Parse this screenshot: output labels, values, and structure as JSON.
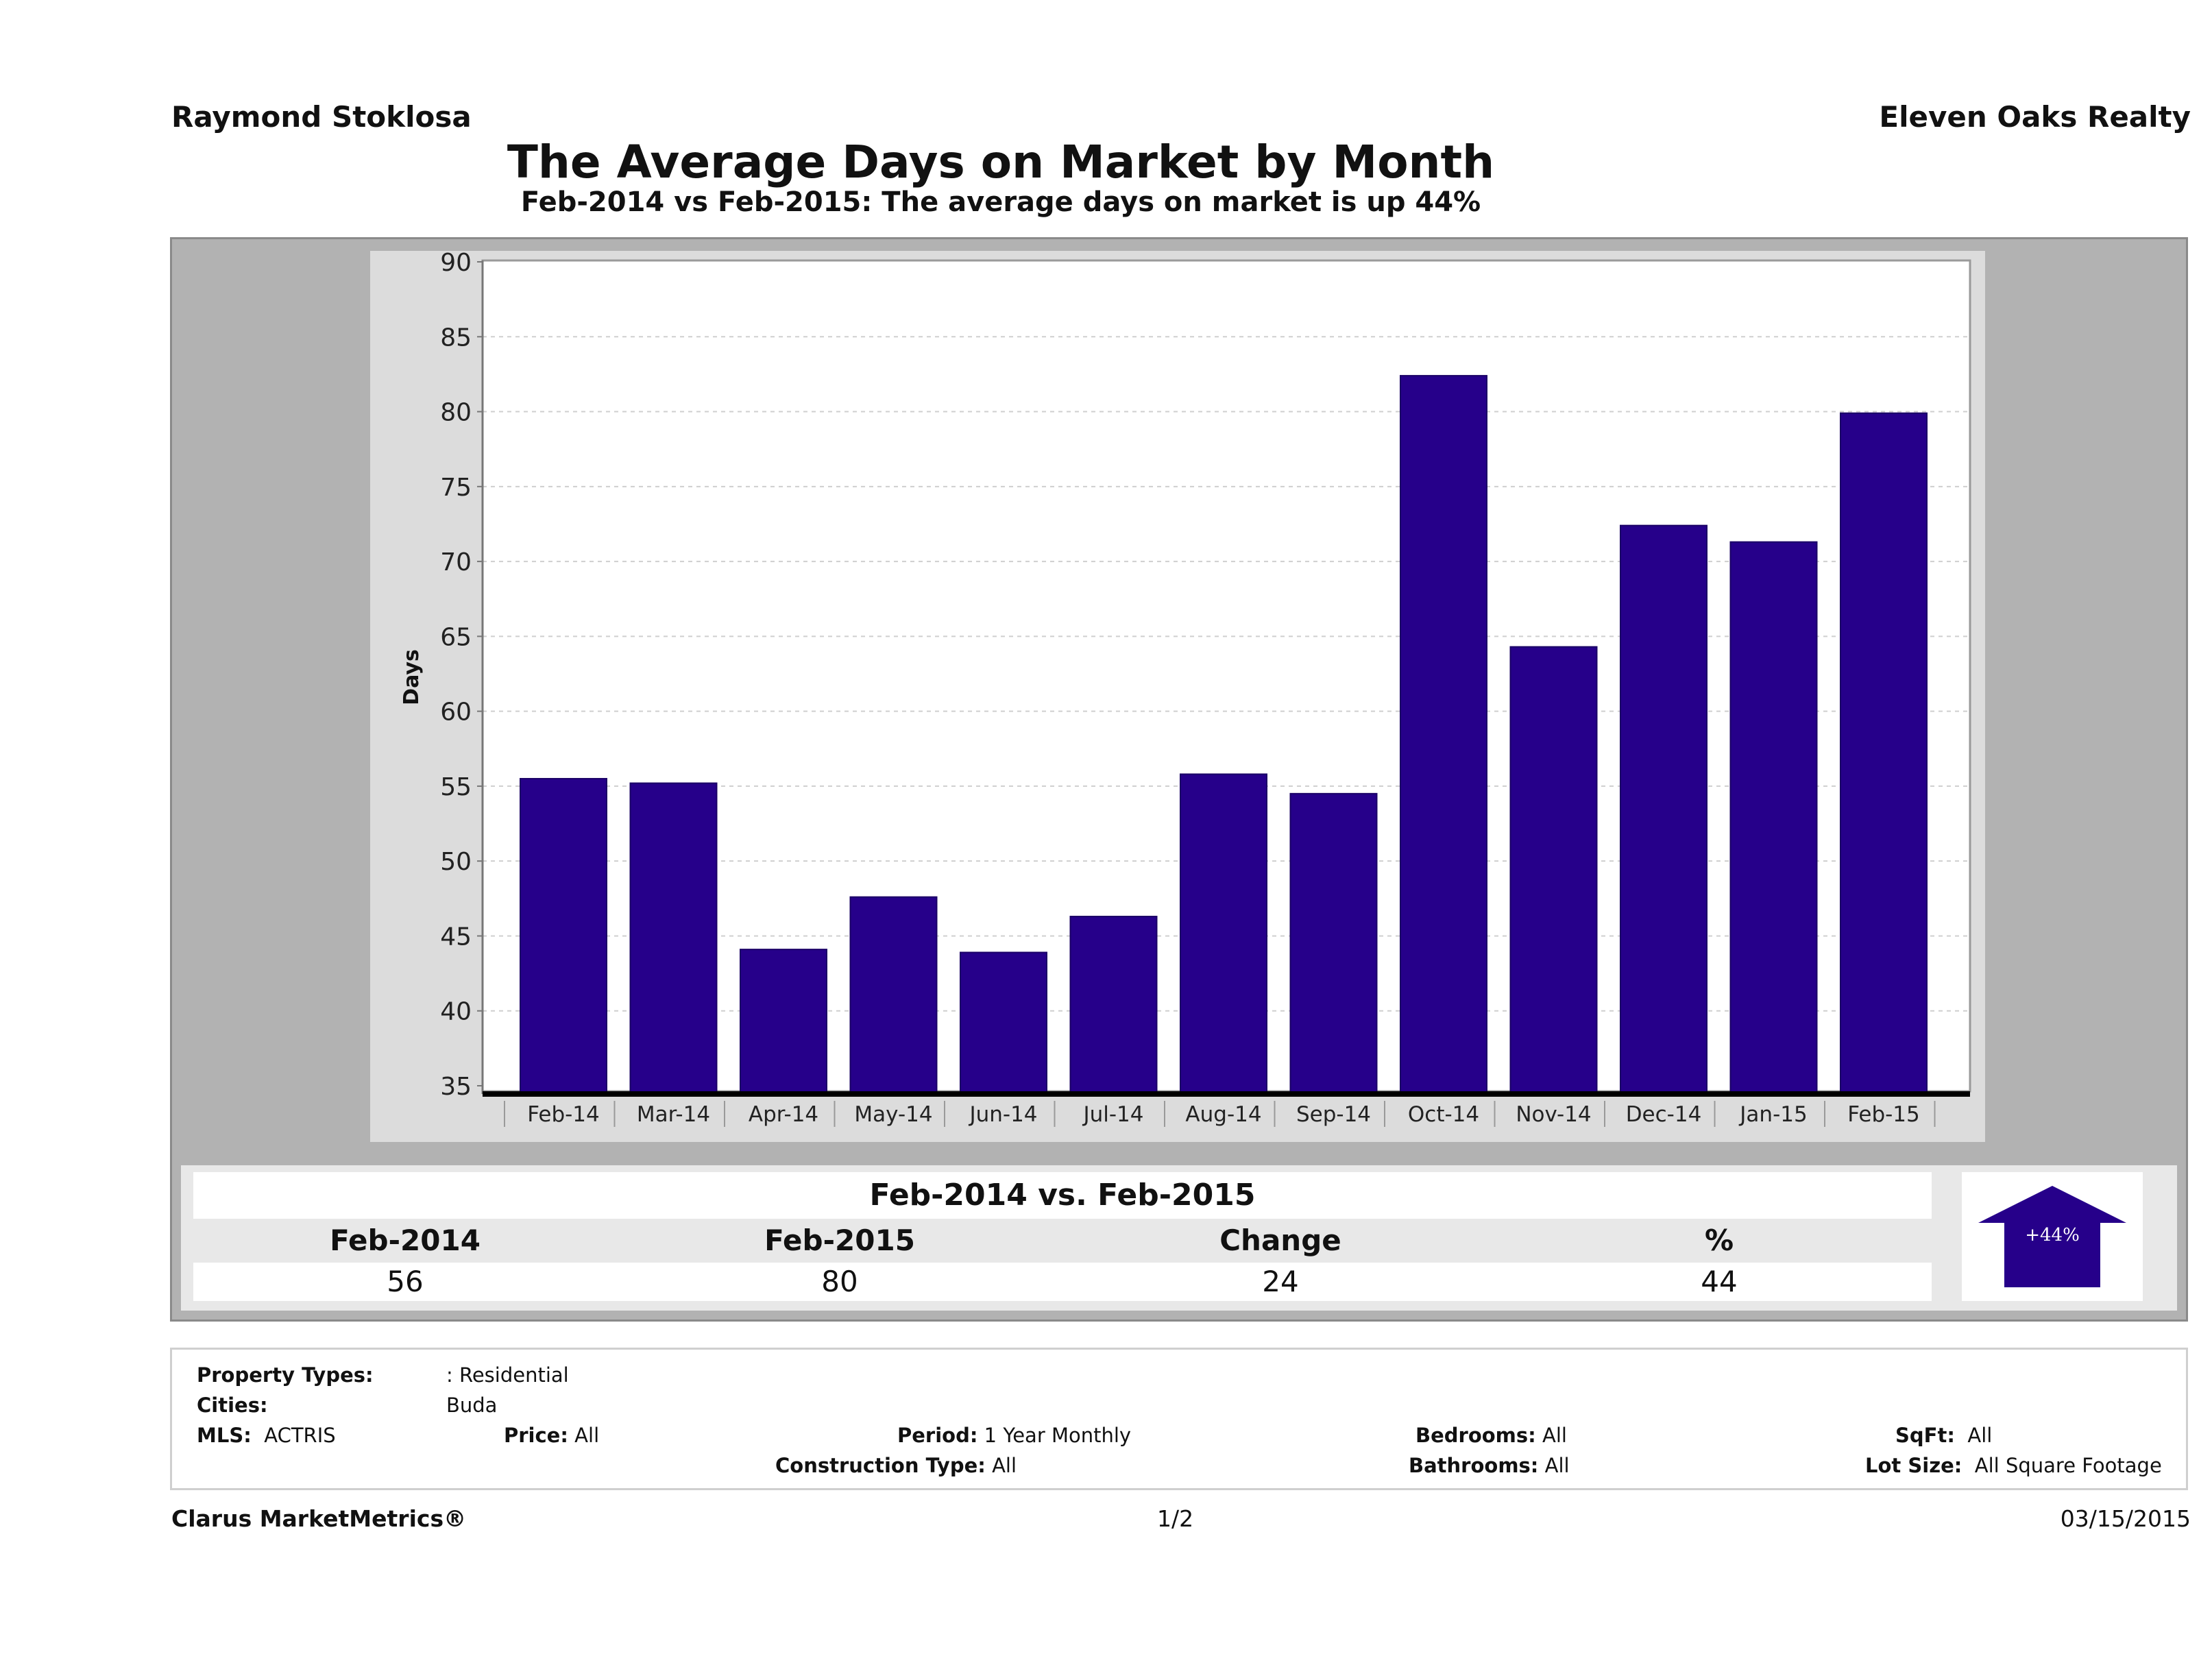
{
  "header": {
    "agent": "Raymond Stoklosa",
    "brokerage": "Eleven Oaks Realty",
    "title": "The Average Days on Market by Month",
    "subtitle": "Feb-2014 vs Feb-2015: The average days on market is up 44%"
  },
  "chart_data": {
    "type": "bar",
    "title": "The Average Days on Market by Month",
    "xlabel": "",
    "ylabel": "Days",
    "ylim": [
      35,
      90
    ],
    "yticks": [
      35,
      40,
      45,
      50,
      55,
      60,
      65,
      70,
      75,
      80,
      85,
      90
    ],
    "grid": true,
    "categories": [
      "Feb-14",
      "Mar-14",
      "Apr-14",
      "May-14",
      "Jun-14",
      "Jul-14",
      "Aug-14",
      "Sep-14",
      "Oct-14",
      "Nov-14",
      "Dec-14",
      "Jan-15",
      "Feb-15"
    ],
    "values": [
      55.5,
      55.2,
      44.1,
      47.6,
      43.9,
      46.3,
      55.8,
      54.5,
      82.4,
      64.3,
      72.4,
      71.3,
      79.9
    ],
    "bar_color": "#26008a"
  },
  "summary": {
    "title": "Feb-2014 vs. Feb-2015",
    "columns": [
      "Feb-2014",
      "Feb-2015",
      "Change",
      "%"
    ],
    "values": [
      "56",
      "80",
      "24",
      "44"
    ],
    "badge": "+44%",
    "badge_direction": "up",
    "badge_color": "#26008a"
  },
  "filters": {
    "property_types_label": "Property Types:",
    "property_types_value": ": Residential",
    "cities_label": "Cities:",
    "cities_value": "Buda",
    "mls_label": "MLS:",
    "mls_value": "ACTRIS",
    "price_label": "Price:",
    "price_value": "All",
    "period_label": "Period:",
    "period_value": "1 Year Monthly",
    "construction_label": "Construction Type:",
    "construction_value": "All",
    "bedrooms_label": "Bedrooms:",
    "bedrooms_value": "All",
    "bathrooms_label": "Bathrooms:",
    "bathrooms_value": "All",
    "sqft_label": "SqFt:",
    "sqft_value": "All",
    "lot_label": "Lot Size:",
    "lot_value": "All Square Footage"
  },
  "footer": {
    "brand": "Clarus MarketMetrics®",
    "page": "1/2",
    "date": "03/15/2015"
  }
}
